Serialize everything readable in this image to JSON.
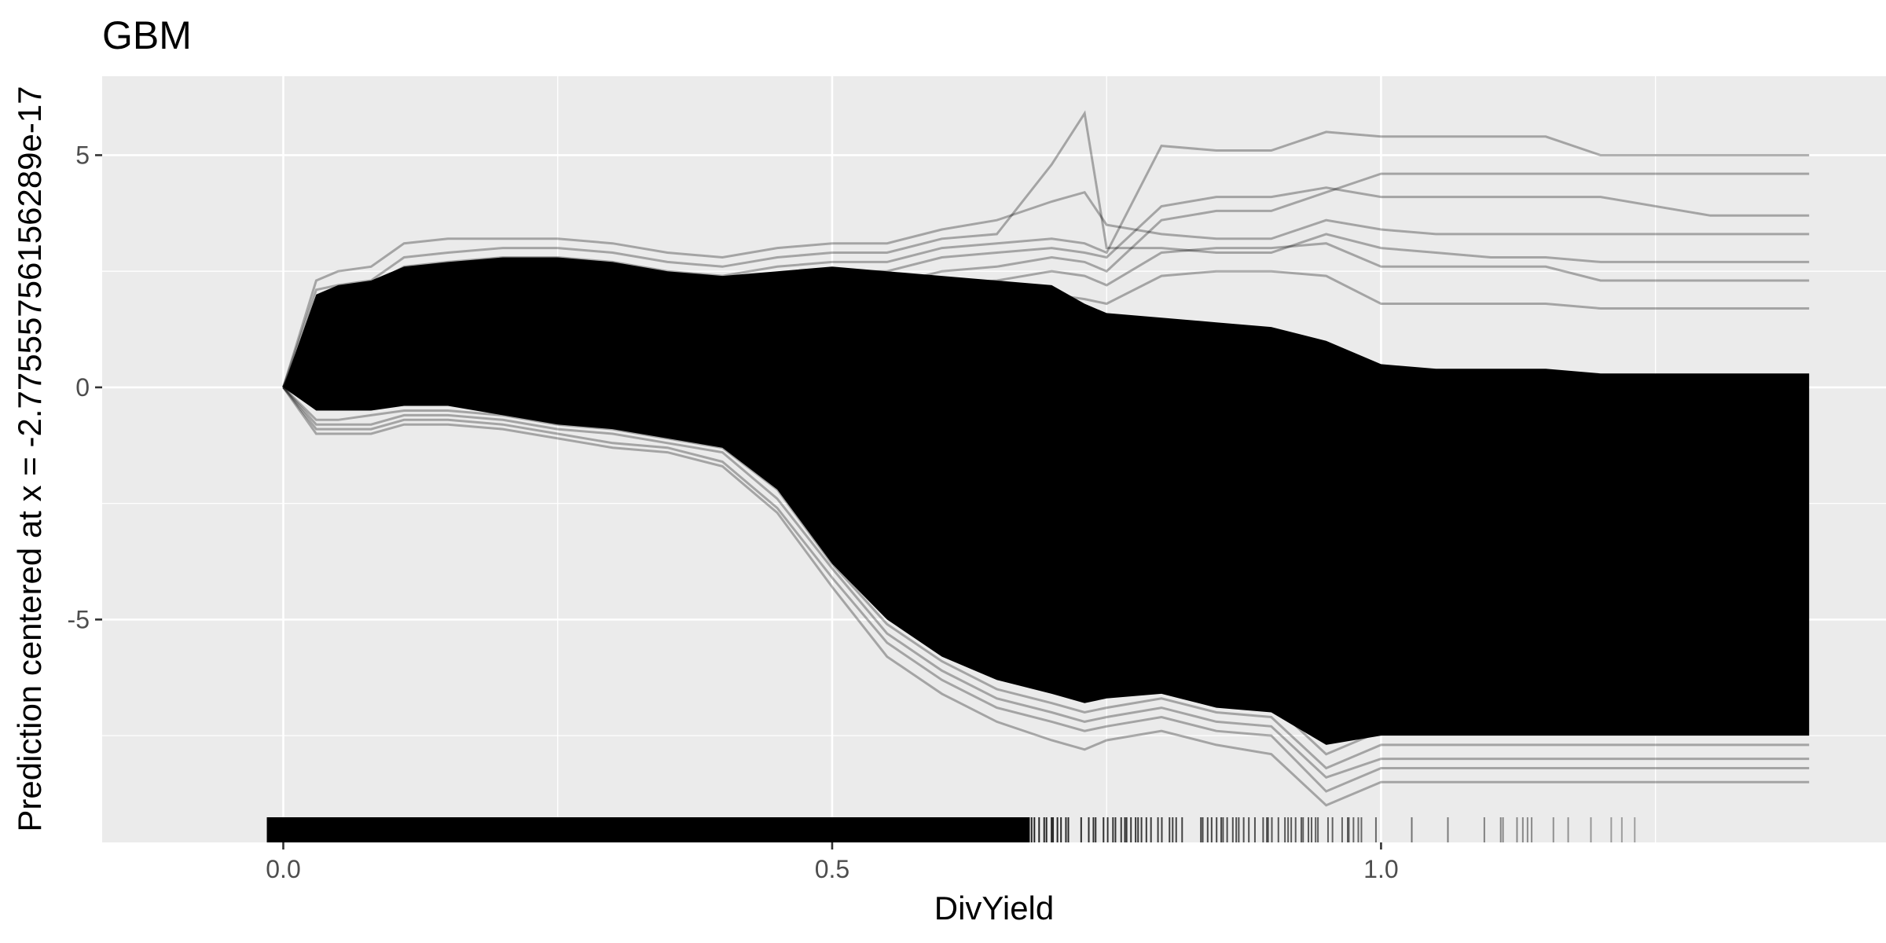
{
  "chart_data": {
    "type": "line",
    "title": "GBM",
    "xlabel": "DivYield",
    "ylabel": "Prediction centered at x = -2.77555756156289e-17",
    "xlim": [
      -0.165,
      1.46
    ],
    "ylim": [
      -9.8,
      6.7
    ],
    "x_ticks": [
      0.0,
      0.5,
      1.0
    ],
    "x_tick_labels": [
      "0.0",
      "0.5",
      "1.0"
    ],
    "y_ticks": [
      -5,
      0,
      5
    ],
    "y_tick_labels": [
      "-5",
      "0",
      "5"
    ],
    "grid": true,
    "legend": "none",
    "rug": "x-axis rug of DivYield observations, dense from 0.0 to about 0.68, sparse up to about 1.38",
    "x": [
      0.0,
      0.03,
      0.05,
      0.08,
      0.11,
      0.15,
      0.2,
      0.25,
      0.3,
      0.35,
      0.4,
      0.45,
      0.5,
      0.55,
      0.6,
      0.65,
      0.7,
      0.73,
      0.75,
      0.8,
      0.85,
      0.9,
      0.95,
      1.0,
      1.05,
      1.1,
      1.15,
      1.2,
      1.3,
      1.39
    ],
    "series": [
      {
        "values": [
          0,
          2.3,
          2.5,
          2.6,
          3.1,
          3.2,
          3.2,
          3.2,
          3.1,
          2.9,
          2.8,
          3.0,
          3.1,
          3.1,
          3.4,
          3.6,
          4.0,
          4.2,
          3.5,
          3.3,
          3.2,
          3.2,
          3.6,
          3.4,
          3.3,
          3.3,
          3.3,
          3.3,
          3.3,
          3.3
        ]
      },
      {
        "values": [
          0,
          2.1,
          2.2,
          2.3,
          2.8,
          2.9,
          3.0,
          3.0,
          2.9,
          2.7,
          2.6,
          2.8,
          2.9,
          2.9,
          3.2,
          3.3,
          4.8,
          5.9,
          3.0,
          3.0,
          2.9,
          2.9,
          3.3,
          3.0,
          2.9,
          2.8,
          2.8,
          2.7,
          2.7,
          2.7
        ]
      },
      {
        "values": [
          0,
          1.8,
          2.0,
          2.2,
          2.6,
          2.7,
          2.8,
          2.8,
          2.7,
          2.5,
          2.4,
          2.6,
          2.7,
          2.7,
          3.0,
          3.1,
          3.2,
          3.1,
          2.9,
          5.2,
          5.1,
          5.1,
          5.5,
          5.4,
          5.4,
          5.4,
          5.4,
          5.0,
          5.0,
          5.0
        ]
      },
      {
        "values": [
          0,
          1.6,
          1.8,
          1.9,
          2.3,
          2.5,
          2.6,
          2.6,
          2.5,
          2.3,
          2.2,
          2.4,
          2.5,
          2.5,
          2.8,
          2.9,
          3.0,
          2.9,
          2.8,
          3.9,
          4.1,
          4.1,
          4.3,
          4.1,
          4.1,
          4.1,
          4.1,
          4.1,
          3.7,
          3.7
        ]
      },
      {
        "values": [
          0,
          1.4,
          1.5,
          1.7,
          2.1,
          2.2,
          2.3,
          2.3,
          2.2,
          2.1,
          2.0,
          2.2,
          2.2,
          2.2,
          2.5,
          2.6,
          2.8,
          2.7,
          2.5,
          3.6,
          3.8,
          3.8,
          4.2,
          4.6,
          4.6,
          4.6,
          4.6,
          4.6,
          4.6,
          4.6
        ]
      },
      {
        "values": [
          0,
          1.0,
          1.2,
          1.3,
          1.8,
          1.9,
          2.0,
          2.0,
          1.9,
          1.8,
          1.7,
          1.9,
          1.9,
          1.9,
          2.2,
          2.3,
          2.5,
          2.4,
          2.2,
          2.9,
          3.0,
          3.0,
          3.1,
          2.6,
          2.6,
          2.6,
          2.6,
          2.3,
          2.3,
          2.3
        ]
      },
      {
        "values": [
          0,
          0.8,
          0.9,
          1.0,
          1.4,
          1.5,
          1.6,
          1.6,
          1.5,
          1.4,
          1.3,
          1.5,
          1.5,
          1.5,
          1.8,
          1.9,
          2.0,
          1.9,
          1.8,
          2.4,
          2.5,
          2.5,
          2.4,
          1.8,
          1.8,
          1.8,
          1.8,
          1.7,
          1.7,
          1.7
        ]
      },
      {
        "values": [
          0,
          -0.9,
          -0.9,
          -0.9,
          -0.7,
          -0.7,
          -0.8,
          -1.0,
          -1.2,
          -1.3,
          -1.6,
          -2.6,
          -4.1,
          -5.5,
          -6.3,
          -6.9,
          -7.2,
          -7.4,
          -7.3,
          -7.1,
          -7.4,
          -7.5,
          -8.7,
          -8.2,
          -8.2,
          -8.2,
          -8.2,
          -8.2,
          -8.2,
          -8.2
        ]
      },
      {
        "values": [
          0,
          -0.8,
          -0.8,
          -0.8,
          -0.6,
          -0.6,
          -0.7,
          -0.9,
          -1.0,
          -1.2,
          -1.4,
          -2.4,
          -3.9,
          -5.3,
          -6.1,
          -6.7,
          -7.0,
          -7.2,
          -7.1,
          -6.9,
          -7.2,
          -7.3,
          -8.4,
          -8.0,
          -8.0,
          -8.0,
          -8.0,
          -8.0,
          -8.0,
          -8.0
        ]
      },
      {
        "values": [
          0,
          -1.0,
          -1.0,
          -1.0,
          -0.8,
          -0.8,
          -0.9,
          -1.1,
          -1.3,
          -1.4,
          -1.7,
          -2.7,
          -4.3,
          -5.8,
          -6.6,
          -7.2,
          -7.6,
          -7.8,
          -7.6,
          -7.4,
          -7.7,
          -7.9,
          -9.0,
          -8.5,
          -8.5,
          -8.5,
          -8.5,
          -8.5,
          -8.5,
          -8.5
        ]
      },
      {
        "values": [
          0,
          -0.7,
          -0.7,
          -0.6,
          -0.5,
          -0.5,
          -0.6,
          -0.8,
          -0.9,
          -1.1,
          -1.3,
          -2.2,
          -3.8,
          -5.1,
          -5.9,
          -6.5,
          -6.8,
          -7.0,
          -6.9,
          -6.7,
          -7.0,
          -7.1,
          -8.2,
          -7.7,
          -7.7,
          -7.7,
          -7.7,
          -7.7,
          -7.7,
          -7.7
        ]
      },
      {
        "values": [
          0,
          -0.4,
          -0.4,
          -0.3,
          -0.2,
          -0.3,
          -0.4,
          -0.6,
          -0.7,
          -0.9,
          -1.1,
          -2.0,
          -3.5,
          -4.8,
          -5.6,
          -6.1,
          -6.4,
          -6.6,
          -6.5,
          -6.3,
          -6.6,
          -6.8,
          -7.9,
          -7.4,
          -7.4,
          -7.4,
          -7.4,
          -7.4,
          -7.4,
          -7.4
        ]
      }
    ],
    "band": {
      "upper": [
        0,
        2.0,
        2.2,
        2.3,
        2.6,
        2.7,
        2.8,
        2.8,
        2.7,
        2.5,
        2.4,
        2.5,
        2.6,
        2.5,
        2.4,
        2.3,
        2.2,
        1.8,
        1.6,
        1.5,
        1.4,
        1.3,
        1.0,
        0.5,
        0.4,
        0.4,
        0.4,
        0.3,
        0.3,
        0.3
      ],
      "lower": [
        0,
        -0.5,
        -0.5,
        -0.5,
        -0.4,
        -0.4,
        -0.6,
        -0.8,
        -0.9,
        -1.1,
        -1.3,
        -2.2,
        -3.8,
        -5.0,
        -5.8,
        -6.3,
        -6.6,
        -6.8,
        -6.7,
        -6.6,
        -6.9,
        -7.0,
        -7.7,
        -7.5,
        -7.5,
        -7.5,
        -7.5,
        -7.5,
        -7.5,
        -7.5
      ]
    }
  }
}
